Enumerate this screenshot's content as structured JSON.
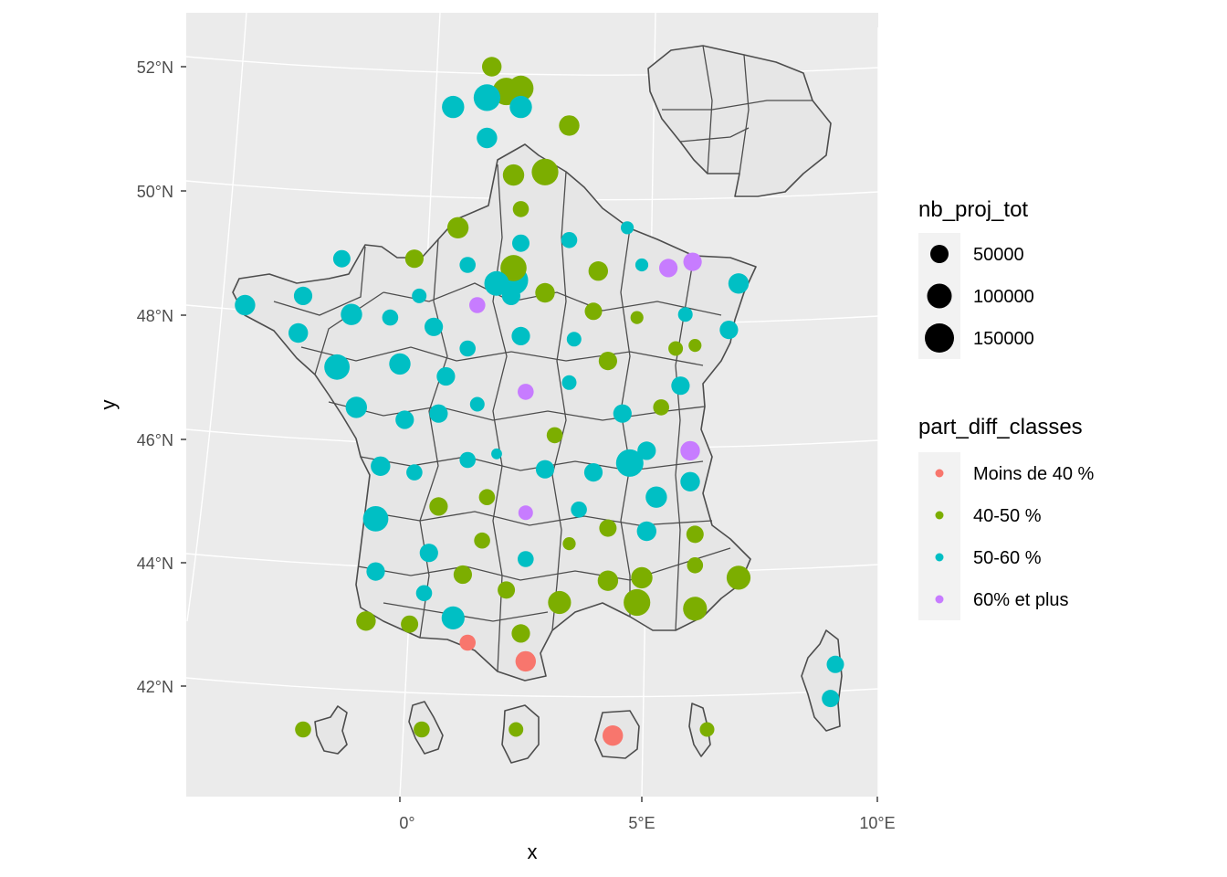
{
  "map": {
    "x_label": "x",
    "y_label": "y",
    "x_ticks": [
      "0°",
      "5°E",
      "10°E"
    ],
    "y_ticks": [
      "52°N",
      "50°N",
      "48°N",
      "46°N",
      "44°N",
      "42°N"
    ],
    "panel_background": "#ebebeb",
    "grid_color": "#ffffff",
    "border_color": "#4d4d4d",
    "land_fill": "#e6e6e6"
  },
  "legend_size": {
    "title": "nb_proj_tot",
    "items": [
      {
        "label": "50000",
        "value": 50000
      },
      {
        "label": "100000",
        "value": 100000
      },
      {
        "label": "150000",
        "value": 150000
      }
    ]
  },
  "legend_color": {
    "title": "part_diff_classes",
    "items": [
      {
        "label": "Moins de 40 %",
        "color": "#F8766D"
      },
      {
        "label": "40-50 %",
        "color": "#7CAE00"
      },
      {
        "label": "50-60 %",
        "color": "#00BFC4"
      },
      {
        "label": "60% et plus",
        "color": "#C77CFF"
      }
    ]
  },
  "points": [
    {
      "lon": 3.0,
      "lat": 50.3,
      "size": 160000,
      "cls": 1
    },
    {
      "lon": 2.35,
      "lat": 50.25,
      "size": 90000,
      "cls": 1
    },
    {
      "lon": 2.5,
      "lat": 49.7,
      "size": 40000,
      "cls": 1
    },
    {
      "lon": 1.2,
      "lat": 49.4,
      "size": 90000,
      "cls": 1
    },
    {
      "lon": 2.5,
      "lat": 49.15,
      "size": 50000,
      "cls": 2
    },
    {
      "lon": 3.5,
      "lat": 49.2,
      "size": 40000,
      "cls": 2
    },
    {
      "lon": 4.7,
      "lat": 49.4,
      "size": 20000,
      "cls": 2
    },
    {
      "lon": 0.3,
      "lat": 48.9,
      "size": 60000,
      "cls": 1
    },
    {
      "lon": -1.2,
      "lat": 48.9,
      "size": 50000,
      "cls": 2
    },
    {
      "lon": 1.4,
      "lat": 48.8,
      "size": 40000,
      "cls": 2
    },
    {
      "lon": 2.35,
      "lat": 48.75,
      "size": 150000,
      "cls": 1
    },
    {
      "lon": 2.35,
      "lat": 48.55,
      "size": 200000,
      "cls": 2
    },
    {
      "lon": 2.0,
      "lat": 48.5,
      "size": 130000,
      "cls": 2
    },
    {
      "lon": 2.3,
      "lat": 48.3,
      "size": 60000,
      "cls": 2
    },
    {
      "lon": 3.0,
      "lat": 48.35,
      "size": 70000,
      "cls": 1
    },
    {
      "lon": 0.4,
      "lat": 48.3,
      "size": 30000,
      "cls": 2
    },
    {
      "lon": 1.6,
      "lat": 48.15,
      "size": 40000,
      "cls": 3
    },
    {
      "lon": 4.1,
      "lat": 48.7,
      "size": 70000,
      "cls": 1
    },
    {
      "lon": 5.0,
      "lat": 48.8,
      "size": 20000,
      "cls": 2
    },
    {
      "lon": 5.55,
      "lat": 48.75,
      "size": 60000,
      "cls": 3
    },
    {
      "lon": 6.05,
      "lat": 48.85,
      "size": 60000,
      "cls": 3
    },
    {
      "lon": 7.0,
      "lat": 48.5,
      "size": 80000,
      "cls": 2
    },
    {
      "lon": -3.2,
      "lat": 48.15,
      "size": 80000,
      "cls": 2
    },
    {
      "lon": -2.0,
      "lat": 48.3,
      "size": 60000,
      "cls": 2
    },
    {
      "lon": -1.0,
      "lat": 48.0,
      "size": 90000,
      "cls": 2
    },
    {
      "lon": -0.2,
      "lat": 47.95,
      "size": 40000,
      "cls": 2
    },
    {
      "lon": 0.7,
      "lat": 47.8,
      "size": 60000,
      "cls": 2
    },
    {
      "lon": 4.0,
      "lat": 48.05,
      "size": 50000,
      "cls": 1
    },
    {
      "lon": 4.9,
      "lat": 47.95,
      "size": 20000,
      "cls": 1
    },
    {
      "lon": 5.9,
      "lat": 48.0,
      "size": 30000,
      "cls": 2
    },
    {
      "lon": -2.1,
      "lat": 47.7,
      "size": 70000,
      "cls": 2
    },
    {
      "lon": 2.5,
      "lat": 47.65,
      "size": 60000,
      "cls": 2
    },
    {
      "lon": 3.6,
      "lat": 47.6,
      "size": 30000,
      "cls": 2
    },
    {
      "lon": 6.8,
      "lat": 47.75,
      "size": 60000,
      "cls": 2
    },
    {
      "lon": -1.3,
      "lat": 47.15,
      "size": 140000,
      "cls": 2
    },
    {
      "lon": 0.0,
      "lat": 47.2,
      "size": 90000,
      "cls": 2
    },
    {
      "lon": 1.4,
      "lat": 47.45,
      "size": 40000,
      "cls": 2
    },
    {
      "lon": 4.3,
      "lat": 47.25,
      "size": 60000,
      "cls": 1
    },
    {
      "lon": 5.7,
      "lat": 47.45,
      "size": 30000,
      "cls": 1
    },
    {
      "lon": 6.1,
      "lat": 47.5,
      "size": 20000,
      "cls": 1
    },
    {
      "lon": 0.95,
      "lat": 47.0,
      "size": 60000,
      "cls": 2
    },
    {
      "lon": 3.5,
      "lat": 46.9,
      "size": 30000,
      "cls": 2
    },
    {
      "lon": 5.8,
      "lat": 46.85,
      "size": 60000,
      "cls": 2
    },
    {
      "lon": -0.9,
      "lat": 46.5,
      "size": 90000,
      "cls": 2
    },
    {
      "lon": 1.6,
      "lat": 46.55,
      "size": 30000,
      "cls": 2
    },
    {
      "lon": 2.6,
      "lat": 46.75,
      "size": 40000,
      "cls": 3
    },
    {
      "lon": 5.4,
      "lat": 46.5,
      "size": 40000,
      "cls": 1
    },
    {
      "lon": 0.1,
      "lat": 46.3,
      "size": 60000,
      "cls": 2
    },
    {
      "lon": 0.8,
      "lat": 46.4,
      "size": 60000,
      "cls": 2
    },
    {
      "lon": 4.6,
      "lat": 46.4,
      "size": 60000,
      "cls": 2
    },
    {
      "lon": 3.2,
      "lat": 46.05,
      "size": 40000,
      "cls": 1
    },
    {
      "lon": 6.0,
      "lat": 45.8,
      "size": 70000,
      "cls": 3
    },
    {
      "lon": 5.1,
      "lat": 45.8,
      "size": 60000,
      "cls": 2
    },
    {
      "lon": 1.4,
      "lat": 45.65,
      "size": 40000,
      "cls": 2
    },
    {
      "lon": 2.0,
      "lat": 45.75,
      "size": 10000,
      "cls": 2
    },
    {
      "lon": 4.75,
      "lat": 45.6,
      "size": 170000,
      "cls": 2
    },
    {
      "lon": -0.4,
      "lat": 45.55,
      "size": 70000,
      "cls": 2
    },
    {
      "lon": 0.3,
      "lat": 45.45,
      "size": 40000,
      "cls": 2
    },
    {
      "lon": 3.0,
      "lat": 45.5,
      "size": 60000,
      "cls": 2
    },
    {
      "lon": 4.0,
      "lat": 45.45,
      "size": 60000,
      "cls": 2
    },
    {
      "lon": 6.0,
      "lat": 45.3,
      "size": 70000,
      "cls": 2
    },
    {
      "lon": 5.3,
      "lat": 45.05,
      "size": 90000,
      "cls": 2
    },
    {
      "lon": 1.8,
      "lat": 45.05,
      "size": 40000,
      "cls": 1
    },
    {
      "lon": 0.8,
      "lat": 44.9,
      "size": 60000,
      "cls": 1
    },
    {
      "lon": 3.7,
      "lat": 44.85,
      "size": 40000,
      "cls": 2
    },
    {
      "lon": 2.6,
      "lat": 44.8,
      "size": 30000,
      "cls": 3
    },
    {
      "lon": -0.5,
      "lat": 44.7,
      "size": 140000,
      "cls": 2
    },
    {
      "lon": 4.3,
      "lat": 44.55,
      "size": 50000,
      "cls": 1
    },
    {
      "lon": 5.1,
      "lat": 44.5,
      "size": 70000,
      "cls": 2
    },
    {
      "lon": 6.1,
      "lat": 44.45,
      "size": 50000,
      "cls": 1
    },
    {
      "lon": 1.7,
      "lat": 44.35,
      "size": 40000,
      "cls": 1
    },
    {
      "lon": 3.5,
      "lat": 44.3,
      "size": 20000,
      "cls": 1
    },
    {
      "lon": 0.6,
      "lat": 44.15,
      "size": 60000,
      "cls": 2
    },
    {
      "lon": 2.6,
      "lat": 44.05,
      "size": 40000,
      "cls": 2
    },
    {
      "lon": 6.1,
      "lat": 43.95,
      "size": 40000,
      "cls": 1
    },
    {
      "lon": -0.5,
      "lat": 43.85,
      "size": 60000,
      "cls": 2
    },
    {
      "lon": 1.3,
      "lat": 43.8,
      "size": 60000,
      "cls": 1
    },
    {
      "lon": 5.0,
      "lat": 43.75,
      "size": 90000,
      "cls": 1
    },
    {
      "lon": 4.3,
      "lat": 43.7,
      "size": 80000,
      "cls": 1
    },
    {
      "lon": 7.0,
      "lat": 43.75,
      "size": 120000,
      "cls": 1
    },
    {
      "lon": 0.5,
      "lat": 43.5,
      "size": 40000,
      "cls": 2
    },
    {
      "lon": 2.2,
      "lat": 43.55,
      "size": 50000,
      "cls": 1
    },
    {
      "lon": 3.3,
      "lat": 43.35,
      "size": 110000,
      "cls": 1
    },
    {
      "lon": 4.9,
      "lat": 43.35,
      "size": 160000,
      "cls": 1
    },
    {
      "lon": 6.1,
      "lat": 43.25,
      "size": 120000,
      "cls": 1
    },
    {
      "lon": -0.7,
      "lat": 43.05,
      "size": 70000,
      "cls": 1
    },
    {
      "lon": 0.2,
      "lat": 43.0,
      "size": 50000,
      "cls": 1
    },
    {
      "lon": 1.1,
      "lat": 43.1,
      "size": 110000,
      "cls": 2
    },
    {
      "lon": 2.5,
      "lat": 42.85,
      "size": 60000,
      "cls": 1
    },
    {
      "lon": 1.4,
      "lat": 42.7,
      "size": 40000,
      "cls": 0
    },
    {
      "lon": 2.6,
      "lat": 42.4,
      "size": 80000,
      "cls": 0
    },
    {
      "lon": 9.0,
      "lat": 42.35,
      "size": 50000,
      "cls": 2
    },
    {
      "lon": 8.9,
      "lat": 41.8,
      "size": 50000,
      "cls": 2
    },
    {
      "lon": 1.9,
      "lat": 52.0,
      "size": 70000,
      "cls": 1
    },
    {
      "lon": 2.2,
      "lat": 51.6,
      "size": 170000,
      "cls": 1
    },
    {
      "lon": 2.5,
      "lat": 51.65,
      "size": 140000,
      "cls": 1
    },
    {
      "lon": 1.8,
      "lat": 51.5,
      "size": 160000,
      "cls": 2
    },
    {
      "lon": 1.1,
      "lat": 51.35,
      "size": 100000,
      "cls": 2
    },
    {
      "lon": 2.5,
      "lat": 51.35,
      "size": 100000,
      "cls": 2
    },
    {
      "lon": 1.8,
      "lat": 50.85,
      "size": 80000,
      "cls": 2
    },
    {
      "lon": 3.5,
      "lat": 51.05,
      "size": 80000,
      "cls": 1
    },
    {
      "lon": -2.0,
      "lat": 41.3,
      "size": 40000,
      "cls": 1
    },
    {
      "lon": 0.45,
      "lat": 41.3,
      "size": 40000,
      "cls": 1
    },
    {
      "lon": 2.4,
      "lat": 41.3,
      "size": 30000,
      "cls": 1
    },
    {
      "lon": 4.4,
      "lat": 41.2,
      "size": 80000,
      "cls": 0
    },
    {
      "lon": 6.35,
      "lat": 41.3,
      "size": 30000,
      "cls": 1
    }
  ]
}
